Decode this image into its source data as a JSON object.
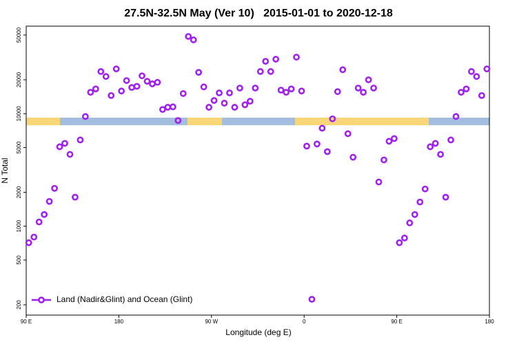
{
  "chart_data": {
    "type": "scatter",
    "title": "27.5N-32.5N May (Ver 10)   2015-01-01 to 2020-12-18",
    "x_label": "Longitude (deg E)",
    "y_label": "N Total",
    "log_y": true,
    "legend_position": "bottom-left",
    "xlim": [
      90,
      540
    ],
    "xticks": [
      {
        "value": 90,
        "label": "90 E"
      },
      {
        "value": 180,
        "label": "180"
      },
      {
        "value": 270,
        "label": "90 W"
      },
      {
        "value": 360,
        "label": "0"
      },
      {
        "value": 450,
        "label": "90 E"
      },
      {
        "value": 540,
        "label": "180"
      }
    ],
    "ylim": [
      162,
      60000
    ],
    "yticks": [
      200,
      500,
      1000,
      2000,
      5000,
      10000,
      20000,
      50000
    ],
    "series": [
      {
        "name": "Land (Nadir&Glint) and Ocean (Glint)",
        "color": "#a020f0",
        "x": [
          92.5,
          97.5,
          102.5,
          107.5,
          112.5,
          117.5,
          122.5,
          127.5,
          132.5,
          137.5,
          142.5,
          147.5,
          152.5,
          157.5,
          162.5,
          167.5,
          172.5,
          177.5,
          182.5,
          187.5,
          192.5,
          197.5,
          202.5,
          207.5,
          212.5,
          217.5,
          222.5,
          227.5,
          232.5,
          237.5,
          242.5,
          247.5,
          252.5,
          257.5,
          262.5,
          267.5,
          272.5,
          277.5,
          282.5,
          287.5,
          292.5,
          297.5,
          302.5,
          307.5,
          312.5,
          317.5,
          322.5,
          327.5,
          332.5,
          337.5,
          342.5,
          347.5,
          352.5,
          357.5,
          362.5,
          367.5,
          372.5,
          377.5,
          382.5,
          387.5,
          392.5,
          397.5,
          402.5,
          407.5,
          412.5,
          417.5,
          422.5,
          427.5,
          432.5,
          437.5,
          442.5,
          447.5,
          452.5,
          457.5,
          462.5,
          467.5,
          472.5,
          477.5,
          482.5,
          487.5,
          492.5,
          497.5,
          502.5,
          507.5,
          512.5,
          517.5,
          522.5,
          527.5,
          532.5,
          537.5
        ],
        "values": [
          713,
          800,
          1090,
          1270,
          1660,
          2170,
          5080,
          5450,
          4350,
          1810,
          5840,
          9440,
          15500,
          16600,
          23700,
          21400,
          14500,
          25000,
          15900,
          19700,
          17100,
          17500,
          21700,
          19400,
          18400,
          19000,
          10900,
          11400,
          11500,
          8700,
          15100,
          48600,
          45300,
          23300,
          17300,
          11400,
          13100,
          15300,
          12400,
          15300,
          11400,
          16900,
          12000,
          12900,
          16900,
          23700,
          29200,
          23700,
          30500,
          16200,
          15500,
          16600,
          31800,
          15900,
          5150,
          224,
          5380,
          7430,
          4600,
          9000,
          15700,
          24600,
          6640,
          4100,
          16900,
          15500,
          20000,
          16900,
          2470,
          3880,
          5690,
          6010,
          713,
          785,
          1070,
          1270,
          1640,
          2140,
          5080,
          5450,
          4350,
          1810,
          5840,
          9440,
          15500,
          16600,
          23700,
          21400,
          14500,
          25000
        ]
      }
    ]
  }
}
